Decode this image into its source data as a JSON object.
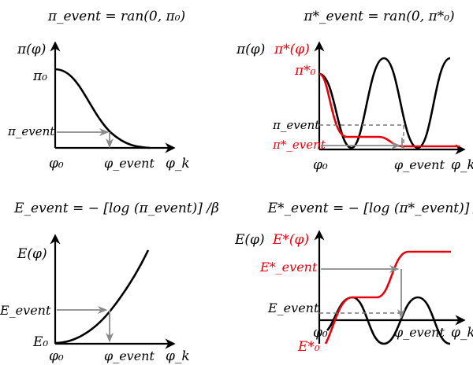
{
  "panels": {
    "top_left": {
      "title": "π_event = ran(0, π₀)",
      "y_axis_label": "π(φ)",
      "y_tick_top": "π₀",
      "y_tick_event": "π_event",
      "x_tick_origin": "φ₀",
      "x_tick_event": "φ_event",
      "x_axis_label": "φ_k"
    },
    "top_right": {
      "title": "π*_event = ran(0, π*₀)",
      "y_axis_label_black": "π(φ)",
      "y_axis_label_red": "π*(φ)",
      "y_tick_top_red": "π*₀",
      "y_tick_event_black": "π_event",
      "y_tick_event_red": "π*_event",
      "x_tick_origin": "φ₀",
      "x_tick_event": "φ_event",
      "x_axis_label": "φ_k"
    },
    "bottom_left": {
      "title": "E_event = − [log (π_event)] /β",
      "y_axis_label": "E(φ)",
      "y_tick_event": "E_event",
      "y_tick_origin": "E₀",
      "x_tick_origin": "φ₀",
      "x_tick_event": "φ_event",
      "x_axis_label": "φ_k"
    },
    "bottom_right": {
      "title": "E*_event = − [log (π*_event)] /β",
      "y_axis_label_black": "E(φ)",
      "y_axis_label_red": "E*(φ)",
      "y_tick_event_red": "E*_event",
      "y_tick_event_black": "E_event",
      "y_tick_origin_red": "E*₀",
      "x_tick_origin": "φ₀",
      "x_tick_event": "φ_event",
      "x_axis_label": "φ_k"
    }
  },
  "colors": {
    "black_curve": "#000000",
    "red_curve": "#e8000b",
    "guides": "#8a8a8a"
  }
}
